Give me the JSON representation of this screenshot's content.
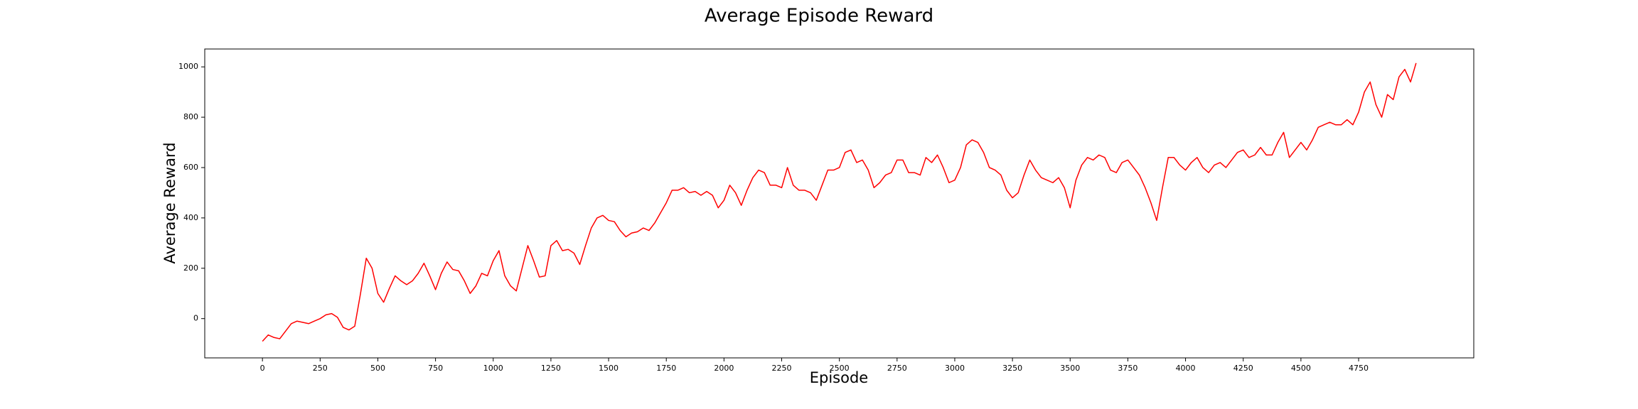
{
  "chart_data": {
    "type": "line",
    "title": "Average Episode Reward",
    "x_label": "Episode",
    "y_label": "Average Reward",
    "x": [
      0,
      25,
      50,
      75,
      100,
      125,
      150,
      175,
      200,
      225,
      250,
      275,
      300,
      325,
      350,
      375,
      400,
      425,
      450,
      475,
      500,
      525,
      550,
      575,
      600,
      625,
      650,
      675,
      700,
      725,
      750,
      775,
      800,
      825,
      850,
      875,
      900,
      925,
      950,
      975,
      1000,
      1025,
      1050,
      1075,
      1100,
      1125,
      1150,
      1175,
      1200,
      1225,
      1250,
      1275,
      1300,
      1325,
      1350,
      1375,
      1400,
      1425,
      1450,
      1475,
      1500,
      1525,
      1550,
      1575,
      1600,
      1625,
      1650,
      1675,
      1700,
      1725,
      1750,
      1775,
      1800,
      1825,
      1850,
      1875,
      1900,
      1925,
      1950,
      1975,
      2000,
      2025,
      2050,
      2075,
      2100,
      2125,
      2150,
      2175,
      2200,
      2225,
      2250,
      2275,
      2300,
      2325,
      2350,
      2375,
      2400,
      2425,
      2450,
      2475,
      2500,
      2525,
      2550,
      2575,
      2600,
      2625,
      2650,
      2675,
      2700,
      2725,
      2750,
      2775,
      2800,
      2825,
      2850,
      2875,
      2900,
      2925,
      2950,
      2975,
      3000,
      3025,
      3050,
      3075,
      3100,
      3125,
      3150,
      3175,
      3200,
      3225,
      3250,
      3275,
      3300,
      3325,
      3350,
      3375,
      3400,
      3425,
      3450,
      3475,
      3500,
      3525,
      3550,
      3575,
      3600,
      3625,
      3650,
      3675,
      3700,
      3725,
      3750,
      3775,
      3800,
      3825,
      3850,
      3875,
      3900,
      3925,
      3950,
      3975,
      4000,
      4025,
      4050,
      4075,
      4100,
      4125,
      4150,
      4175,
      4200,
      4225,
      4250,
      4275,
      4300,
      4325,
      4350,
      4375,
      4400,
      4425,
      4450,
      4475,
      4500,
      4525,
      4550,
      4575,
      4600,
      4625,
      4650,
      4675,
      4700,
      4725,
      4750,
      4775,
      4800,
      4825,
      4850,
      4875,
      4900,
      4925,
      4950,
      4975,
      4999
    ],
    "series": [
      {
        "name": "Average Reward",
        "color": "#ff0000",
        "values": [
          -90,
          -65,
          -75,
          -80,
          -50,
          -20,
          -10,
          -15,
          -20,
          -10,
          0,
          15,
          20,
          5,
          -35,
          -45,
          -30,
          100,
          240,
          200,
          100,
          65,
          120,
          170,
          150,
          135,
          150,
          180,
          220,
          170,
          115,
          180,
          225,
          195,
          190,
          150,
          100,
          130,
          180,
          170,
          230,
          270,
          170,
          130,
          110,
          200,
          290,
          230,
          165,
          170,
          290,
          310,
          270,
          275,
          260,
          215,
          290,
          360,
          400,
          410,
          390,
          385,
          350,
          325,
          340,
          345,
          360,
          350,
          380,
          420,
          460,
          510,
          510,
          520,
          500,
          505,
          490,
          505,
          490,
          440,
          470,
          530,
          500,
          450,
          510,
          560,
          590,
          580,
          530,
          530,
          520,
          600,
          530,
          510,
          510,
          500,
          470,
          530,
          590,
          590,
          600,
          660,
          670,
          620,
          630,
          590,
          520,
          540,
          570,
          580,
          630,
          630,
          580,
          580,
          570,
          640,
          620,
          650,
          600,
          540,
          550,
          600,
          690,
          710,
          700,
          660,
          600,
          590,
          570,
          510,
          480,
          500,
          570,
          630,
          590,
          560,
          550,
          540,
          560,
          520,
          440,
          550,
          610,
          640,
          630,
          650,
          640,
          590,
          580,
          620,
          630,
          600,
          570,
          520,
          460,
          390,
          520,
          640,
          640,
          610,
          590,
          620,
          640,
          600,
          580,
          610,
          620,
          600,
          630,
          660,
          670,
          640,
          650,
          680,
          650,
          650,
          700,
          740,
          640,
          670,
          700,
          670,
          710,
          760,
          770,
          780,
          770,
          770,
          790,
          770,
          820,
          900,
          940,
          850,
          800,
          890,
          870,
          960,
          990,
          940,
          1015
        ]
      }
    ],
    "xlim": [
      -250,
      5249
    ],
    "ylim": [
      -156,
      1071
    ],
    "xticks": [
      0,
      250,
      500,
      750,
      1000,
      1250,
      1500,
      1750,
      2000,
      2250,
      2500,
      2750,
      3000,
      3250,
      3500,
      3750,
      4000,
      4250,
      4500,
      4750
    ],
    "yticks": [
      0,
      200,
      400,
      600,
      800,
      1000
    ],
    "grid": false
  }
}
